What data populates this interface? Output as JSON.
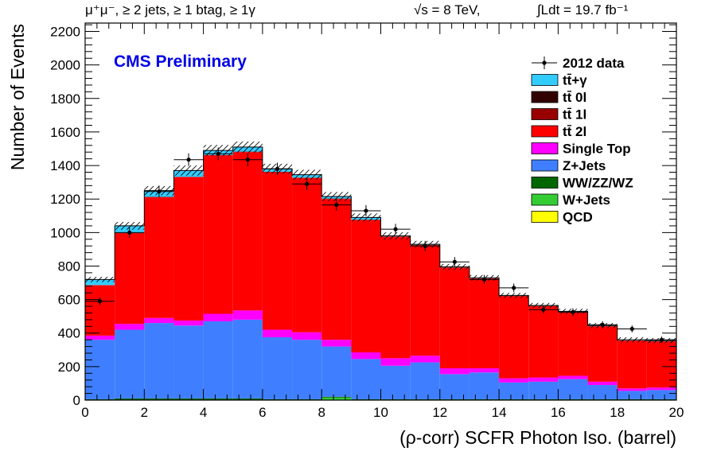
{
  "header": {
    "selection": "μ⁺μ⁻, ≥ 2 jets, ≥ 1 btag, ≥ 1γ",
    "energy": "√s = 8 TeV,",
    "lumi": "∫Ldt = 19.7 fb⁻¹"
  },
  "cms_label": "CMS Preliminary",
  "chart_data": {
    "type": "bar",
    "subtype": "stacked-histogram",
    "xlabel": "(ρ-corr) SCFR Photon Iso. (barrel)",
    "ylabel": "Number of Events",
    "xlim": [
      0,
      20
    ],
    "ylim": [
      0,
      2250
    ],
    "x_ticks": [
      "0",
      "2",
      "4",
      "6",
      "8",
      "10",
      "12",
      "14",
      "16",
      "18",
      "20"
    ],
    "y_ticks": [
      "0",
      "200",
      "400",
      "600",
      "800",
      "1000",
      "1200",
      "1400",
      "1600",
      "1800",
      "2000",
      "2200"
    ],
    "bin_edges": [
      0,
      1,
      2,
      3,
      4,
      5,
      6,
      7,
      8,
      9,
      10,
      11,
      12,
      13,
      14,
      15,
      16,
      17,
      18,
      19,
      20
    ],
    "legend_position": "top-right",
    "series": [
      {
        "name": "QCD",
        "color": "#ffff00",
        "values": [
          0,
          0,
          0,
          0,
          0,
          0,
          0,
          0,
          0,
          0,
          0,
          0,
          0,
          0,
          0,
          0,
          0,
          0,
          0,
          0
        ]
      },
      {
        "name": "W+Jets",
        "color": "#33cc33",
        "values": [
          0,
          0,
          0,
          0,
          0,
          0,
          0,
          0,
          15,
          0,
          0,
          0,
          0,
          0,
          0,
          0,
          0,
          0,
          0,
          0
        ]
      },
      {
        "name": "WW/ZZ/WZ",
        "color": "#006600",
        "values": [
          5,
          10,
          10,
          10,
          10,
          10,
          5,
          5,
          5,
          5,
          5,
          5,
          5,
          5,
          5,
          5,
          5,
          5,
          5,
          5
        ]
      },
      {
        "name": "Z+Jets",
        "color": "#3f7fff",
        "values": [
          355,
          410,
          450,
          435,
          460,
          470,
          370,
          355,
          300,
          240,
          200,
          220,
          150,
          160,
          100,
          105,
          120,
          85,
          50,
          55
        ]
      },
      {
        "name": "Single Top",
        "color": "#ff00ff",
        "values": [
          25,
          35,
          30,
          30,
          45,
          55,
          45,
          45,
          40,
          40,
          45,
          40,
          35,
          25,
          25,
          25,
          20,
          20,
          15,
          15
        ]
      },
      {
        "name": "tt̄ 2l",
        "color": "#ff0000",
        "values": [
          300,
          540,
          720,
          855,
          945,
          945,
          940,
          920,
          840,
          790,
          725,
          660,
          600,
          535,
          490,
          425,
          380,
          330,
          285,
          275
        ]
      },
      {
        "name": "tt̄ 1l",
        "color": "#990000",
        "values": [
          2,
          3,
          3,
          3,
          3,
          3,
          3,
          3,
          3,
          2,
          2,
          2,
          2,
          2,
          2,
          2,
          2,
          2,
          2,
          2
        ]
      },
      {
        "name": "tt̄ 0l",
        "color": "#330000",
        "values": [
          0,
          0,
          0,
          0,
          0,
          0,
          0,
          0,
          0,
          0,
          0,
          0,
          0,
          0,
          0,
          0,
          0,
          0,
          0,
          0
        ]
      },
      {
        "name": "tt̄+γ",
        "color": "#33ccff",
        "values": [
          33,
          42,
          37,
          37,
          27,
          27,
          17,
          17,
          12,
          13,
          3,
          3,
          3,
          3,
          3,
          3,
          3,
          3,
          3,
          3
        ]
      }
    ],
    "data_series": {
      "name": "2012 data",
      "x": [
        0.5,
        1.5,
        2.5,
        3.5,
        4.5,
        5.5,
        6.5,
        7.5,
        8.5,
        9.5,
        10.5,
        11.5,
        12.5,
        13.5,
        14.5,
        15.5,
        16.5,
        17.5,
        18.5,
        19.5
      ],
      "values": [
        590,
        1000,
        1245,
        1435,
        1470,
        1435,
        1380,
        1290,
        1165,
        1130,
        1020,
        920,
        825,
        720,
        670,
        540,
        525,
        450,
        425,
        360
      ]
    }
  }
}
